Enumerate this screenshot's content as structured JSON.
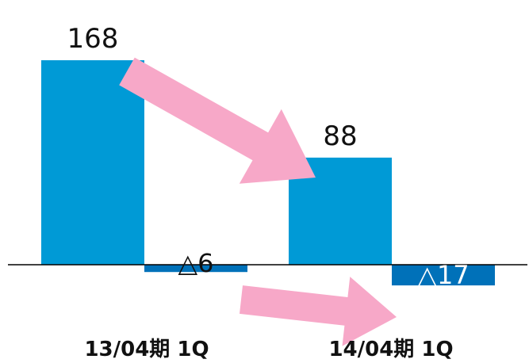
{
  "chart_data": {
    "type": "bar",
    "categories": [
      "13/04期 1Q",
      "14/04期 1Q"
    ],
    "series": [
      {
        "values": [
          168,
          88
        ],
        "labels": [
          "168",
          "88"
        ]
      },
      {
        "values": [
          -6,
          -17
        ],
        "labels": [
          "△6",
          "△17"
        ]
      }
    ],
    "ylim": [
      -17,
      168
    ],
    "grid": false,
    "legend": "none",
    "annotations": [
      "arrow-down-between-series-1",
      "arrow-down-between-series-2"
    ]
  },
  "colors": {
    "bar_primary": "#009ad6",
    "bar_secondary": "#0071b9",
    "arrow": "#f7a8c8",
    "axis": "#000000",
    "label_on_bar": "#ffffff",
    "text": "#111111"
  }
}
